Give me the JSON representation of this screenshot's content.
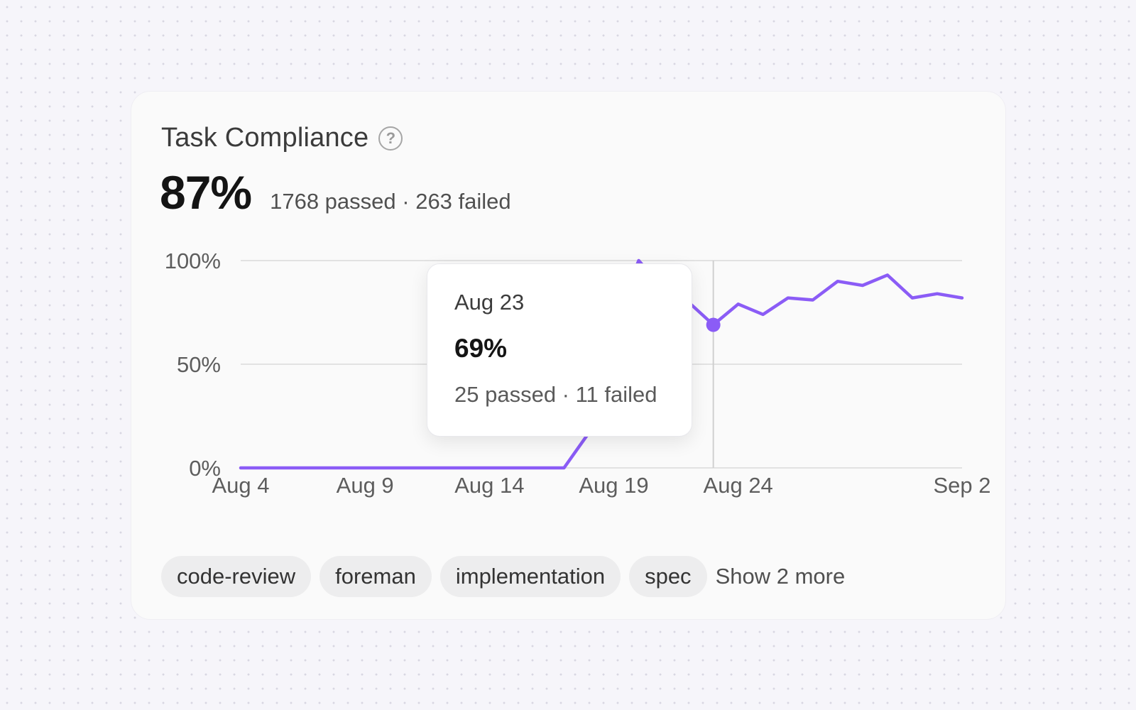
{
  "card": {
    "title": "Task Compliance",
    "help_icon": "question-circle-icon",
    "help_glyph": "?",
    "metric": "87%",
    "metric_summary": "1768 passed · 263 failed"
  },
  "chart_data": {
    "type": "line",
    "y_ticks": [
      "100%",
      "50%",
      "0%"
    ],
    "x_ticks": [
      "Aug 4",
      "Aug 9",
      "Aug 14",
      "Aug 19",
      "Aug 24",
      "Sep 2"
    ],
    "ylim": [
      0,
      100
    ],
    "grid": true,
    "line_color": "#8b5cf6",
    "series": [
      {
        "x": [
          "Aug 4",
          "Aug 5",
          "Aug 6",
          "Aug 7",
          "Aug 8",
          "Aug 9",
          "Aug 10",
          "Aug 11",
          "Aug 12",
          "Aug 13",
          "Aug 14",
          "Aug 15",
          "Aug 16",
          "Aug 17",
          "Aug 18",
          "Aug 19",
          "Aug 20",
          "Aug 21",
          "Aug 22",
          "Aug 23",
          "Aug 24",
          "Aug 25",
          "Aug 26",
          "Aug 27",
          "Aug 28",
          "Aug 29",
          "Aug 30",
          "Aug 31",
          "Sep 1",
          "Sep 2"
        ],
        "values": [
          0,
          0,
          0,
          0,
          0,
          0,
          0,
          0,
          0,
          0,
          0,
          0,
          0,
          0,
          17,
          70,
          100,
          86,
          80,
          69,
          79,
          74,
          82,
          81,
          90,
          88,
          93,
          82,
          84,
          82
        ]
      }
    ],
    "highlight": {
      "x": "Aug 23",
      "value": 69,
      "label_date": "Aug 23",
      "label_value": "69%",
      "label_summary": "25 passed · 11 failed"
    }
  },
  "tags": [
    "code-review",
    "foreman",
    "implementation",
    "spec"
  ],
  "show_more": "Show 2 more"
}
